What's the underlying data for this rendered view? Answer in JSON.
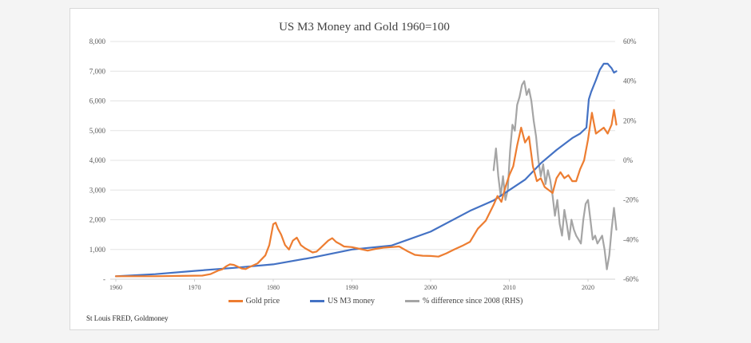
{
  "chart_data": {
    "type": "line",
    "title": "US M3 Money and Gold 1960=100",
    "source": "St Louis FRED, Goldmoney",
    "xlabel": "",
    "ylabel": "",
    "x_ticks": [
      "1960",
      "1970",
      "1980",
      "1990",
      "2000",
      "2010",
      "2020"
    ],
    "xlim": [
      1960,
      2024
    ],
    "y_left": {
      "ylim": [
        0,
        8000
      ],
      "tick_labels": [
        "-",
        "1,000",
        "2,000",
        "3,000",
        "4,000",
        "5,000",
        "6,000",
        "7,000",
        "8,000"
      ]
    },
    "y_right": {
      "ylim": [
        -60,
        60
      ],
      "unit": "%",
      "tick_labels": [
        "-60%",
        "-40%",
        "-20%",
        "0%",
        "20%",
        "40%",
        "60%"
      ]
    },
    "grid": true,
    "legend_position": "bottom",
    "series": [
      {
        "name": "Gold price",
        "axis": "left",
        "color": "#ED7D31",
        "x": [
          1960,
          1965,
          1968,
          1971,
          1972,
          1973,
          1973.5,
          1974,
          1974.5,
          1975,
          1975.5,
          1976,
          1976.5,
          1977,
          1978,
          1979,
          1979.5,
          1980,
          1980.3,
          1980.6,
          1981,
          1981.5,
          1982,
          1982.5,
          1983,
          1983.5,
          1984,
          1985,
          1985.5,
          1986,
          1987,
          1987.5,
          1988,
          1988.5,
          1989,
          1990,
          1991,
          1992,
          1993,
          1994,
          1995,
          1996,
          1997,
          1998,
          1999,
          2000,
          2001,
          2002,
          2003,
          2004,
          2005,
          2006,
          2007,
          2008,
          2008.5,
          2009,
          2009.5,
          2010,
          2010.5,
          2011,
          2011.5,
          2012,
          2012.5,
          2013,
          2013.5,
          2014,
          2014.5,
          2015,
          2015.5,
          2016,
          2016.5,
          2017,
          2017.5,
          2018,
          2018.5,
          2019,
          2019.5,
          2020,
          2020.5,
          2021,
          2021.5,
          2022,
          2022.5,
          2023,
          2023.3,
          2023.6
        ],
        "values": [
          100,
          100,
          110,
          120,
          170,
          290,
          330,
          430,
          500,
          480,
          420,
          360,
          340,
          410,
          530,
          800,
          1150,
          1850,
          1900,
          1700,
          1500,
          1150,
          1000,
          1300,
          1400,
          1150,
          1050,
          900,
          930,
          1050,
          1300,
          1380,
          1250,
          1180,
          1100,
          1080,
          1020,
          960,
          1020,
          1060,
          1080,
          1100,
          950,
          820,
          790,
          780,
          760,
          870,
          1000,
          1120,
          1260,
          1700,
          1970,
          2500,
          2800,
          2600,
          3100,
          3500,
          3800,
          4500,
          5100,
          4600,
          4800,
          3800,
          3300,
          3400,
          3100,
          3000,
          2900,
          3400,
          3600,
          3400,
          3500,
          3300,
          3300,
          3700,
          4000,
          4700,
          5600,
          4900,
          5000,
          5100,
          4900,
          5200,
          5700,
          5200
        ]
      },
      {
        "name": "US M3 money",
        "axis": "left",
        "color": "#4472C4",
        "x": [
          1960,
          1965,
          1970,
          1975,
          1980,
          1985,
          1990,
          1995,
          2000,
          2005,
          2008,
          2010,
          2012,
          2014,
          2016,
          2018,
          2019,
          2019.8,
          2020.1,
          2020.4,
          2021,
          2021.5,
          2022,
          2022.5,
          2023,
          2023.3,
          2023.6
        ],
        "values": [
          100,
          170,
          280,
          380,
          500,
          730,
          1000,
          1130,
          1600,
          2300,
          2650,
          3000,
          3350,
          3900,
          4350,
          4750,
          4900,
          5100,
          6050,
          6300,
          6700,
          7050,
          7250,
          7250,
          7100,
          6950,
          7000
        ]
      },
      {
        "name": "% difference since 2008 (RHS)",
        "axis": "right",
        "color": "#A5A5A5",
        "x": [
          2008,
          2008.3,
          2008.6,
          2008.9,
          2009.2,
          2009.5,
          2009.8,
          2010.1,
          2010.4,
          2010.7,
          2011,
          2011.3,
          2011.6,
          2011.9,
          2012.2,
          2012.5,
          2012.8,
          2013.1,
          2013.4,
          2013.7,
          2014,
          2014.3,
          2014.6,
          2014.9,
          2015.2,
          2015.5,
          2015.8,
          2016.1,
          2016.4,
          2016.7,
          2017,
          2017.3,
          2017.6,
          2017.9,
          2018.2,
          2018.5,
          2018.8,
          2019.1,
          2019.4,
          2019.7,
          2020,
          2020.3,
          2020.6,
          2020.9,
          2021.2,
          2021.5,
          2021.8,
          2022.1,
          2022.4,
          2022.7,
          2023,
          2023.3,
          2023.6
        ],
        "values": [
          -5,
          6,
          -8,
          -18,
          -8,
          -20,
          -15,
          5,
          18,
          15,
          28,
          32,
          38,
          40,
          33,
          36,
          30,
          20,
          12,
          0,
          -8,
          -2,
          -12,
          -5,
          -10,
          -18,
          -28,
          -20,
          -32,
          -38,
          -25,
          -32,
          -40,
          -30,
          -35,
          -38,
          -40,
          -42,
          -30,
          -22,
          -20,
          -30,
          -40,
          -38,
          -42,
          -40,
          -38,
          -45,
          -55,
          -48,
          -35,
          -24,
          -35
        ]
      }
    ]
  }
}
